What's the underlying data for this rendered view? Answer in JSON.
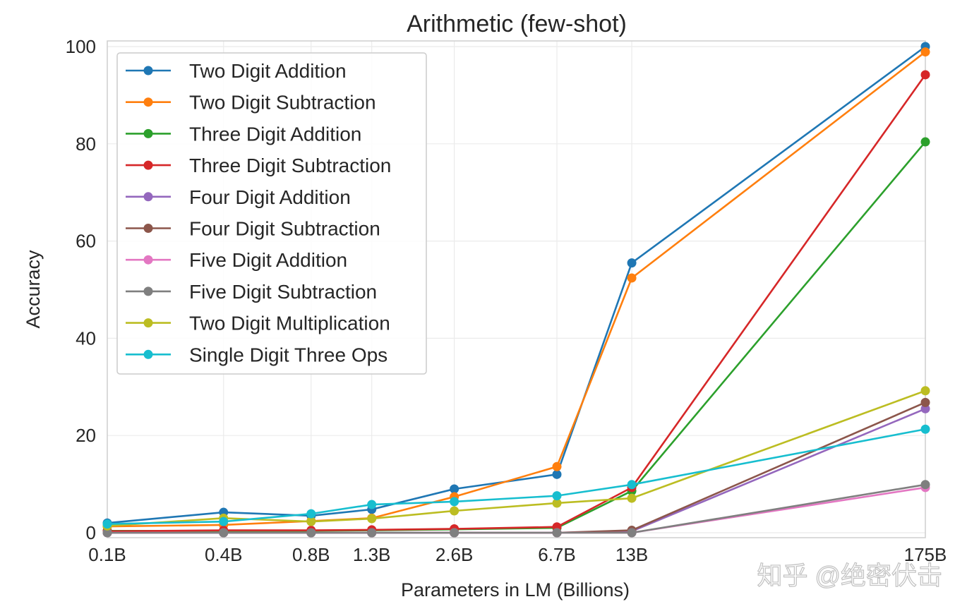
{
  "chart_data": {
    "type": "line",
    "title": "Arithmetic (few-shot)",
    "xlabel": "Parameters in LM (Billions)",
    "ylabel": "Accuracy",
    "x_scale": "log",
    "x": [
      0.125,
      0.35,
      0.76,
      1.3,
      2.7,
      6.7,
      13,
      175
    ],
    "x_tick_labels": [
      "0.1B",
      "0.4B",
      "0.8B",
      "1.3B",
      "2.6B",
      "6.7B",
      "13B",
      "175B"
    ],
    "y_ticks": [
      0,
      20,
      40,
      60,
      80,
      100
    ],
    "ylim": [
      -1.2,
      101
    ],
    "grid": true,
    "legend_position": "top-left",
    "series": [
      {
        "name": "Two Digit Addition",
        "color": "#1f77b4",
        "values": [
          2.0,
          4.2,
          3.5,
          4.8,
          9.0,
          12.0,
          55.5,
          100.0
        ]
      },
      {
        "name": "Two Digit Subtraction",
        "color": "#ff7f0e",
        "values": [
          1.3,
          1.6,
          2.4,
          3.0,
          7.4,
          13.6,
          52.4,
          98.9
        ]
      },
      {
        "name": "Three Digit Addition",
        "color": "#2ca02c",
        "values": [
          0.4,
          0.4,
          0.4,
          0.5,
          0.7,
          1.0,
          8.6,
          80.4
        ]
      },
      {
        "name": "Three Digit Subtraction",
        "color": "#d62728",
        "values": [
          0.3,
          0.5,
          0.5,
          0.6,
          0.8,
          1.2,
          9.3,
          94.2
        ]
      },
      {
        "name": "Four Digit Addition",
        "color": "#9467bd",
        "values": [
          0.0,
          0.0,
          0.0,
          0.0,
          0.0,
          0.0,
          0.3,
          25.5
        ]
      },
      {
        "name": "Four Digit Subtraction",
        "color": "#8c564b",
        "values": [
          0.0,
          0.0,
          0.0,
          0.0,
          0.0,
          0.0,
          0.5,
          26.8
        ]
      },
      {
        "name": "Five Digit Addition",
        "color": "#e377c2",
        "values": [
          0.0,
          0.0,
          0.0,
          0.0,
          0.0,
          0.0,
          0.0,
          9.3
        ]
      },
      {
        "name": "Five Digit Subtraction",
        "color": "#7f7f7f",
        "values": [
          0.0,
          0.0,
          0.0,
          0.0,
          0.0,
          0.0,
          0.0,
          9.9
        ]
      },
      {
        "name": "Two Digit Multiplication",
        "color": "#bcbd22",
        "values": [
          1.4,
          3.0,
          2.3,
          2.9,
          4.5,
          6.1,
          7.1,
          29.2
        ]
      },
      {
        "name": "Single Digit Three Ops",
        "color": "#17becf",
        "values": [
          1.8,
          2.3,
          3.9,
          5.8,
          6.4,
          7.6,
          9.9,
          21.3
        ]
      }
    ]
  },
  "watermark": "知乎 @绝密伏击"
}
